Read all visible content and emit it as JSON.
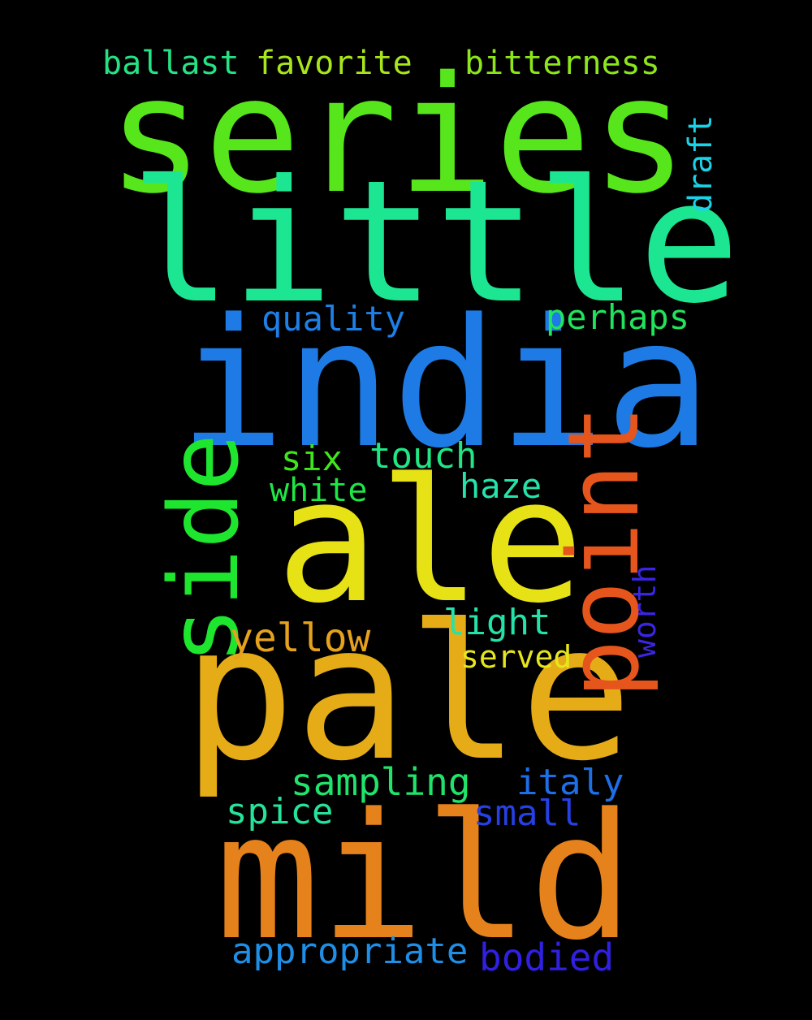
{
  "words": {
    "series": {
      "text": "series",
      "color": "#57e51c"
    },
    "little": {
      "text": "little",
      "color": "#1ce691"
    },
    "india": {
      "text": "india",
      "color": "#1e7be6"
    },
    "ale": {
      "text": "ale",
      "color": "#e6e216"
    },
    "pale": {
      "text": "pale",
      "color": "#e6ac18"
    },
    "mild": {
      "text": "mild",
      "color": "#e6821c"
    },
    "side": {
      "text": "side",
      "color": "#1ee62e"
    },
    "point": {
      "text": "point",
      "color": "#e6561c"
    },
    "ballast": {
      "text": "ballast",
      "color": "#25e384"
    },
    "favorite": {
      "text": "favorite",
      "color": "#a8e61c"
    },
    "bitterness": {
      "text": "bitterness",
      "color": "#8de61c"
    },
    "draft": {
      "text": "draft",
      "color": "#1cd2e6"
    },
    "quality": {
      "text": "quality",
      "color": "#1e7fe6"
    },
    "perhaps": {
      "text": "perhaps",
      "color": "#21e35c"
    },
    "six": {
      "text": "six",
      "color": "#40e61c"
    },
    "touch": {
      "text": "touch",
      "color": "#21e684"
    },
    "white": {
      "text": "white",
      "color": "#1ee645"
    },
    "haze": {
      "text": "haze",
      "color": "#25e3aa"
    },
    "yellow": {
      "text": "yellow",
      "color": "#e6a21c"
    },
    "light": {
      "text": "light",
      "color": "#25e3a8"
    },
    "worth": {
      "text": "worth",
      "color": "#3a25e3"
    },
    "served": {
      "text": "served",
      "color": "#e6e61c"
    },
    "sampling": {
      "text": "sampling",
      "color": "#21e36c"
    },
    "italy": {
      "text": "italy",
      "color": "#1e6ee6"
    },
    "spice": {
      "text": "spice",
      "color": "#25e39a"
    },
    "small": {
      "text": "small",
      "color": "#2540e3"
    },
    "appropriate": {
      "text": "appropriate",
      "color": "#1e8ee6"
    },
    "bodied": {
      "text": "bodied",
      "color": "#3020e0"
    }
  }
}
